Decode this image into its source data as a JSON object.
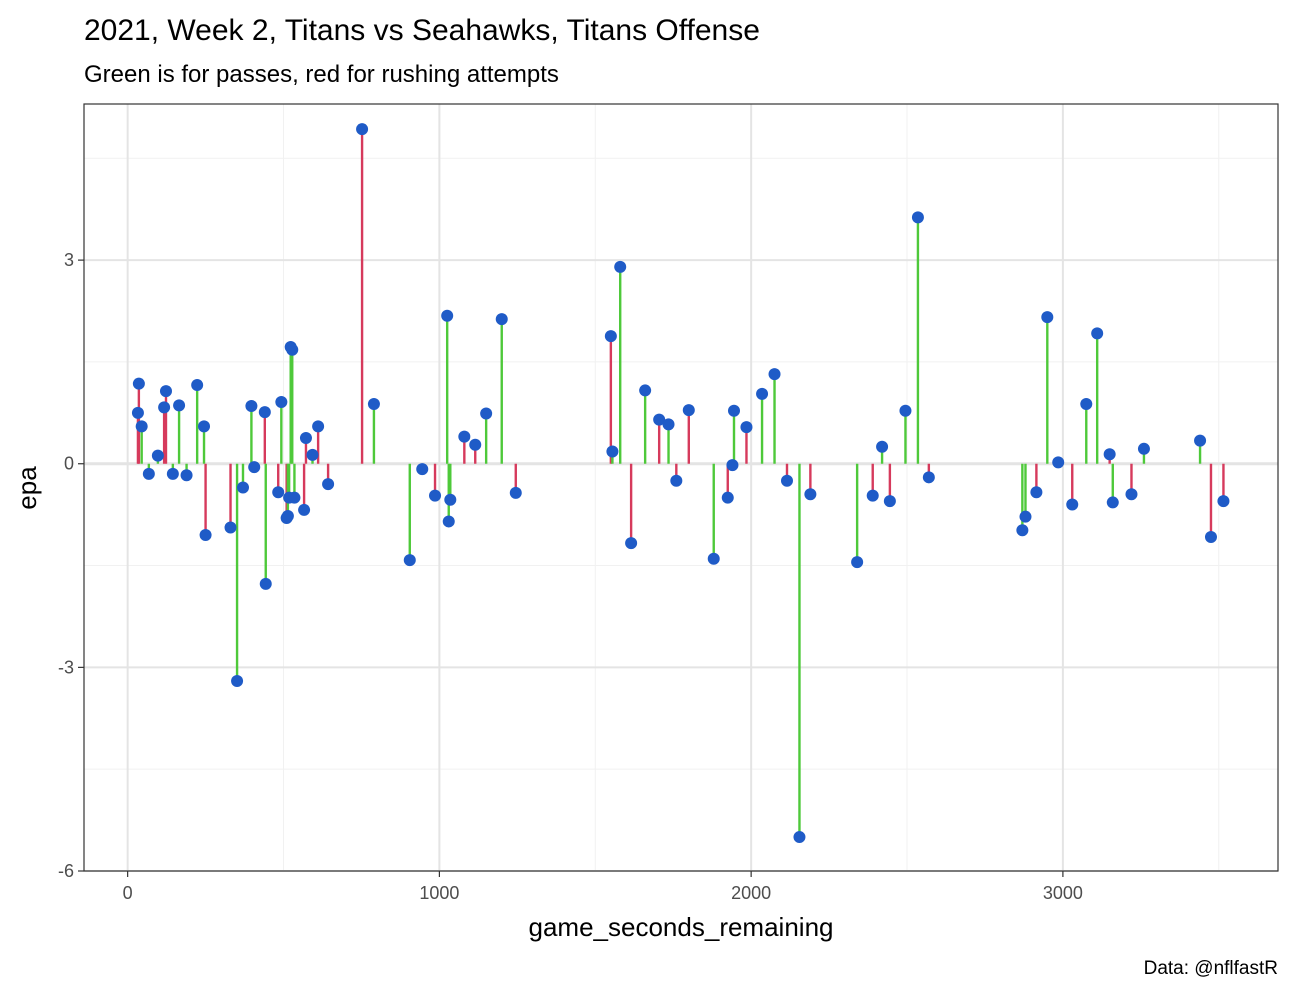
{
  "title": "2021, Week 2, Titans vs Seahawks, Titans Offense",
  "subtitle": "Green is for passes, red for rushing attempts",
  "caption": "Data: @nflfastR",
  "colors": {
    "pass": "#4ec93a",
    "rush": "#d63a5c",
    "point": "#1f5bc7",
    "grid_major": "#e4e4e4",
    "grid_minor": "#f1f1f1",
    "panel_border": "#333333",
    "zero_line": "#e4e4e4"
  },
  "chart_data": {
    "type": "lollipop",
    "title": "2021, Week 2, Titans vs Seahawks, Titans Offense",
    "subtitle": "Green is for passes, red for rushing attempts",
    "xlabel": "game_seconds_remaining",
    "ylabel": "epa",
    "xlim": [
      -140,
      3690
    ],
    "ylim": [
      -6,
      5.3
    ],
    "x_ticks": [
      0,
      1000,
      2000,
      3000
    ],
    "x_tick_labels": [
      "0",
      "1000",
      "2000",
      "3000"
    ],
    "y_ticks": [
      -6,
      -3,
      0,
      3
    ],
    "y_tick_labels": [
      "-6",
      "-3",
      "0",
      "3"
    ],
    "grid": true,
    "legend": "none",
    "caption": "Data: @nflfastR",
    "points": [
      {
        "x": 33,
        "y": 0.75,
        "type": "rush"
      },
      {
        "x": 36,
        "y": 1.18,
        "type": "rush"
      },
      {
        "x": 45,
        "y": 0.55,
        "type": "pass"
      },
      {
        "x": 68,
        "y": -0.15,
        "type": "pass"
      },
      {
        "x": 97,
        "y": 0.12,
        "type": "pass"
      },
      {
        "x": 117,
        "y": 0.83,
        "type": "rush"
      },
      {
        "x": 123,
        "y": 1.07,
        "type": "rush"
      },
      {
        "x": 145,
        "y": -0.15,
        "type": "pass"
      },
      {
        "x": 165,
        "y": 0.86,
        "type": "pass"
      },
      {
        "x": 189,
        "y": -0.17,
        "type": "pass"
      },
      {
        "x": 223,
        "y": 1.16,
        "type": "pass"
      },
      {
        "x": 245,
        "y": 0.55,
        "type": "pass"
      },
      {
        "x": 250,
        "y": -1.05,
        "type": "rush"
      },
      {
        "x": 330,
        "y": -0.94,
        "type": "rush"
      },
      {
        "x": 351,
        "y": -3.2,
        "type": "pass"
      },
      {
        "x": 370,
        "y": -0.35,
        "type": "pass"
      },
      {
        "x": 397,
        "y": 0.85,
        "type": "pass"
      },
      {
        "x": 406,
        "y": -0.05,
        "type": "pass"
      },
      {
        "x": 440,
        "y": 0.76,
        "type": "rush"
      },
      {
        "x": 443,
        "y": -1.77,
        "type": "pass"
      },
      {
        "x": 483,
        "y": -0.42,
        "type": "rush"
      },
      {
        "x": 493,
        "y": 0.91,
        "type": "pass"
      },
      {
        "x": 510,
        "y": -0.8,
        "type": "rush"
      },
      {
        "x": 514,
        "y": -0.77,
        "type": "pass"
      },
      {
        "x": 518,
        "y": -0.5,
        "type": "pass"
      },
      {
        "x": 523,
        "y": 1.72,
        "type": "pass"
      },
      {
        "x": 528,
        "y": 1.68,
        "type": "pass"
      },
      {
        "x": 535,
        "y": -0.5,
        "type": "pass"
      },
      {
        "x": 566,
        "y": -0.68,
        "type": "rush"
      },
      {
        "x": 572,
        "y": 0.38,
        "type": "rush"
      },
      {
        "x": 593,
        "y": 0.13,
        "type": "pass"
      },
      {
        "x": 611,
        "y": 0.55,
        "type": "rush"
      },
      {
        "x": 643,
        "y": -0.3,
        "type": "rush"
      },
      {
        "x": 752,
        "y": 4.93,
        "type": "rush"
      },
      {
        "x": 790,
        "y": 0.88,
        "type": "pass"
      },
      {
        "x": 905,
        "y": -1.42,
        "type": "pass"
      },
      {
        "x": 945,
        "y": -0.08,
        "type": "pass"
      },
      {
        "x": 986,
        "y": -0.47,
        "type": "rush"
      },
      {
        "x": 1025,
        "y": 2.18,
        "type": "pass"
      },
      {
        "x": 1030,
        "y": -0.85,
        "type": "pass"
      },
      {
        "x": 1035,
        "y": -0.53,
        "type": "pass"
      },
      {
        "x": 1080,
        "y": 0.4,
        "type": "rush"
      },
      {
        "x": 1115,
        "y": 0.28,
        "type": "rush"
      },
      {
        "x": 1150,
        "y": 0.74,
        "type": "pass"
      },
      {
        "x": 1200,
        "y": 2.13,
        "type": "pass"
      },
      {
        "x": 1245,
        "y": -0.43,
        "type": "rush"
      },
      {
        "x": 1550,
        "y": 1.88,
        "type": "rush"
      },
      {
        "x": 1555,
        "y": 0.18,
        "type": "pass"
      },
      {
        "x": 1580,
        "y": 2.9,
        "type": "pass"
      },
      {
        "x": 1615,
        "y": -1.17,
        "type": "rush"
      },
      {
        "x": 1660,
        "y": 1.08,
        "type": "pass"
      },
      {
        "x": 1705,
        "y": 0.65,
        "type": "rush"
      },
      {
        "x": 1735,
        "y": 0.58,
        "type": "pass"
      },
      {
        "x": 1760,
        "y": -0.25,
        "type": "rush"
      },
      {
        "x": 1800,
        "y": 0.79,
        "type": "rush"
      },
      {
        "x": 1880,
        "y": -1.4,
        "type": "pass"
      },
      {
        "x": 1925,
        "y": -0.5,
        "type": "rush"
      },
      {
        "x": 1940,
        "y": -0.02,
        "type": "pass"
      },
      {
        "x": 1945,
        "y": 0.78,
        "type": "pass"
      },
      {
        "x": 1985,
        "y": 0.54,
        "type": "rush"
      },
      {
        "x": 2035,
        "y": 1.03,
        "type": "pass"
      },
      {
        "x": 2075,
        "y": 1.32,
        "type": "pass"
      },
      {
        "x": 2115,
        "y": -0.25,
        "type": "rush"
      },
      {
        "x": 2155,
        "y": -5.5,
        "type": "pass"
      },
      {
        "x": 2190,
        "y": -0.45,
        "type": "rush"
      },
      {
        "x": 2340,
        "y": -1.45,
        "type": "pass"
      },
      {
        "x": 2390,
        "y": -0.47,
        "type": "rush"
      },
      {
        "x": 2420,
        "y": 0.25,
        "type": "pass"
      },
      {
        "x": 2445,
        "y": -0.55,
        "type": "rush"
      },
      {
        "x": 2495,
        "y": 0.78,
        "type": "pass"
      },
      {
        "x": 2535,
        "y": 3.63,
        "type": "pass"
      },
      {
        "x": 2570,
        "y": -0.2,
        "type": "rush"
      },
      {
        "x": 2870,
        "y": -0.98,
        "type": "pass"
      },
      {
        "x": 2880,
        "y": -0.78,
        "type": "pass"
      },
      {
        "x": 2915,
        "y": -0.42,
        "type": "rush"
      },
      {
        "x": 2950,
        "y": 2.16,
        "type": "pass"
      },
      {
        "x": 2985,
        "y": 0.02,
        "type": "pass"
      },
      {
        "x": 3030,
        "y": -0.6,
        "type": "rush"
      },
      {
        "x": 3075,
        "y": 0.88,
        "type": "pass"
      },
      {
        "x": 3110,
        "y": 1.92,
        "type": "pass"
      },
      {
        "x": 3150,
        "y": 0.14,
        "type": "rush"
      },
      {
        "x": 3160,
        "y": -0.57,
        "type": "pass"
      },
      {
        "x": 3220,
        "y": -0.45,
        "type": "rush"
      },
      {
        "x": 3260,
        "y": 0.22,
        "type": "pass"
      },
      {
        "x": 3440,
        "y": 0.34,
        "type": "pass"
      },
      {
        "x": 3475,
        "y": -1.08,
        "type": "rush"
      },
      {
        "x": 3515,
        "y": -0.55,
        "type": "rush"
      }
    ]
  }
}
